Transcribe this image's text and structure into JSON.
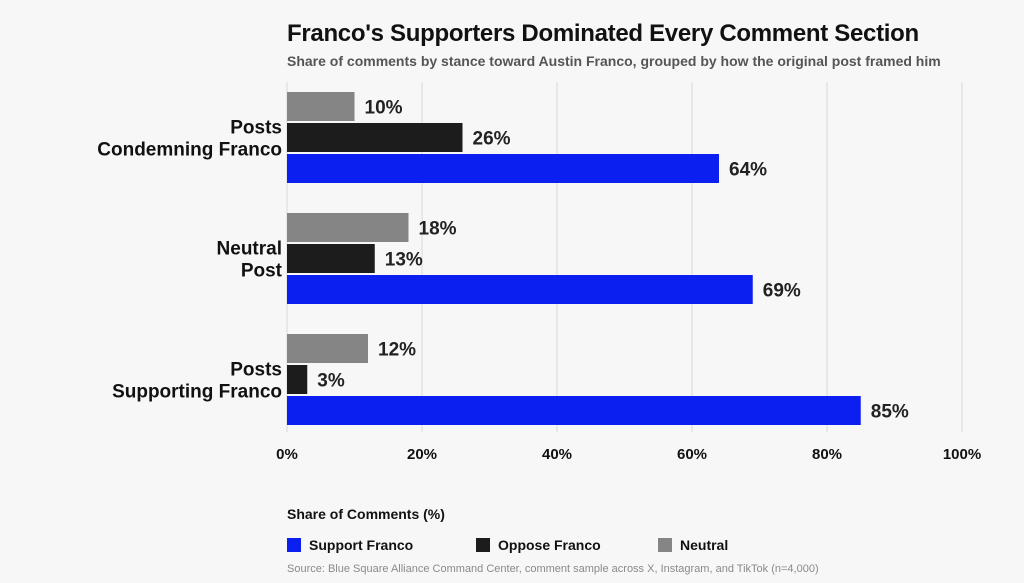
{
  "title": "Franco's Supporters Dominated Every Comment Section",
  "subtitle": "Share of comments by stance toward Austin Franco, grouped by how the original post framed him",
  "legend_title": "Share of Comments (%)",
  "source": "Source: Blue Square Alliance Command Center, comment sample across X, Instagram, and TikTok (n=4,000)",
  "colors": {
    "support": "#0a1ff0",
    "oppose": "#1c1c1c",
    "neutral": "#858585",
    "grid": "#d9d9d9",
    "background": "#f7f7f7"
  },
  "chart_data": {
    "type": "bar",
    "orientation": "horizontal",
    "categories": [
      [
        "Posts",
        "Condemning Franco"
      ],
      [
        "Neutral",
        "Post"
      ],
      [
        "Posts",
        "Supporting Franco"
      ]
    ],
    "series": [
      {
        "name": "Neutral",
        "key": "neutral",
        "values": [
          10,
          18,
          12
        ]
      },
      {
        "name": "Oppose Franco",
        "key": "oppose",
        "values": [
          26,
          13,
          3
        ]
      },
      {
        "name": "Support Franco",
        "key": "support",
        "values": [
          64,
          69,
          85
        ]
      }
    ],
    "legend_order": [
      "support",
      "oppose",
      "neutral"
    ],
    "data_label_suffix": "%",
    "xlim": [
      0,
      100
    ],
    "xticks": [
      0,
      20,
      40,
      60,
      80,
      100
    ],
    "xtick_labels": [
      "0%",
      "20%",
      "40%",
      "60%",
      "80%",
      "100%"
    ],
    "xlabel": "",
    "ylabel": "",
    "grid": "vertical",
    "legend_position": "bottom-left"
  }
}
